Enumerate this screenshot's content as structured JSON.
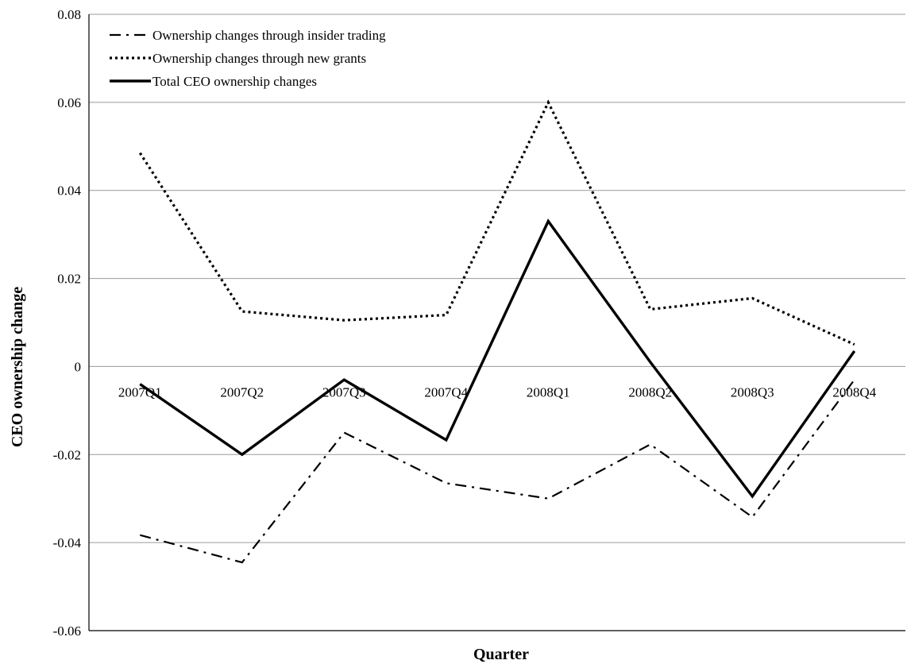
{
  "chart_data": {
    "type": "line",
    "title": "",
    "xlabel": "Quarter",
    "ylabel": "CEO ownership change",
    "ylim": [
      -0.06,
      0.08
    ],
    "yticks": [
      "0.08",
      "0.06",
      "0.04",
      "0.02",
      "0",
      "-0.02",
      "-0.04",
      "-0.06"
    ],
    "grid": true,
    "legend": "top-left",
    "categories": [
      "2007Q1",
      "2007Q2",
      "2007Q3",
      "2007Q4",
      "2008Q1",
      "2008Q2",
      "2008Q3",
      "2008Q4"
    ],
    "series": [
      {
        "name": "Ownership changes through insider trading",
        "style": "dash-dot",
        "color": "#000000",
        "values": [
          -0.0383,
          -0.0445,
          -0.015,
          -0.0265,
          -0.03,
          -0.0177,
          -0.0342,
          -0.003
        ]
      },
      {
        "name": "Ownership changes through new grants",
        "style": "dotted",
        "color": "#000000",
        "values": [
          0.0485,
          0.0125,
          0.0105,
          0.0117,
          0.06,
          0.013,
          0.0155,
          0.005
        ]
      },
      {
        "name": "Total CEO ownership changes",
        "style": "solid",
        "color": "#000000",
        "values": [
          -0.004,
          -0.02,
          -0.003,
          -0.0167,
          0.033,
          0.001,
          -0.0295,
          0.0035
        ]
      }
    ]
  }
}
